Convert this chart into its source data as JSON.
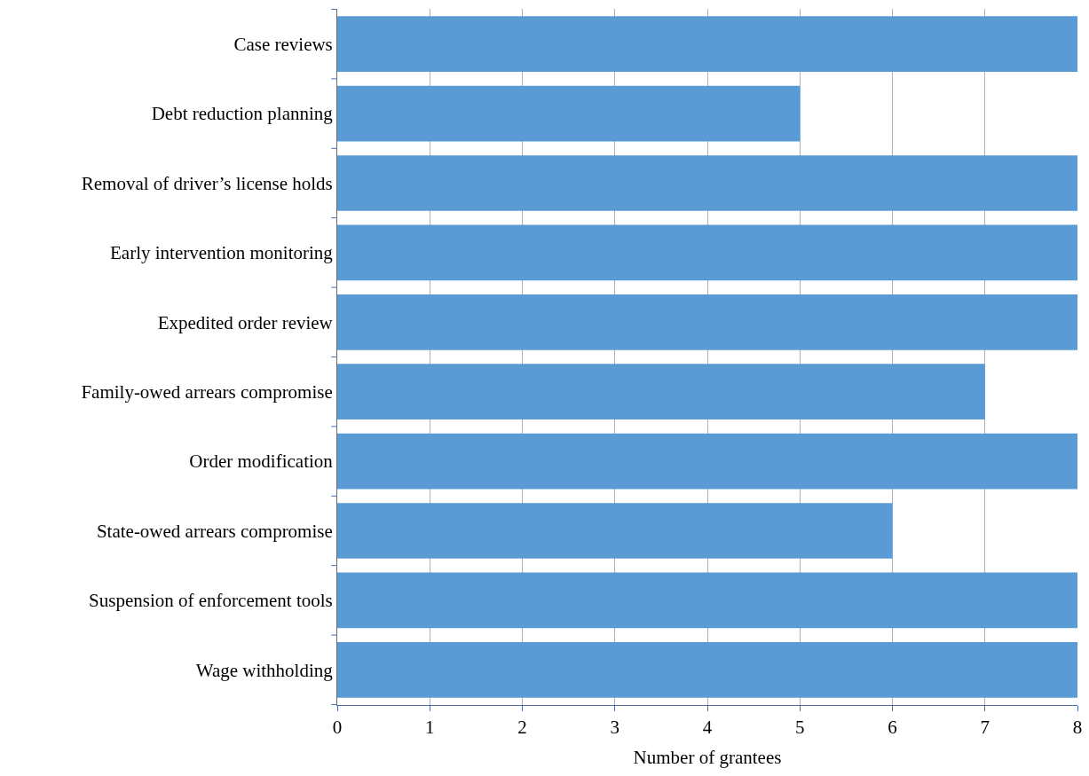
{
  "chart_data": {
    "type": "bar",
    "orientation": "horizontal",
    "xlabel": "Number of grantees",
    "categories": [
      "Case reviews",
      "Debt reduction planning",
      "Removal of driver’s license holds",
      "Early intervention monitoring",
      "Expedited order review",
      "Family-owed arrears compromise",
      "Order modification",
      "State-owed arrears compromise",
      "Suspension of enforcement tools",
      "Wage withholding"
    ],
    "values": [
      8,
      5,
      8,
      8,
      8,
      7,
      8,
      6,
      8,
      8
    ],
    "color": "#5b9bd5",
    "xlim": [
      0,
      8
    ],
    "xticks": [
      0,
      1,
      2,
      3,
      4,
      5,
      6,
      7,
      8
    ],
    "grid": "x"
  }
}
